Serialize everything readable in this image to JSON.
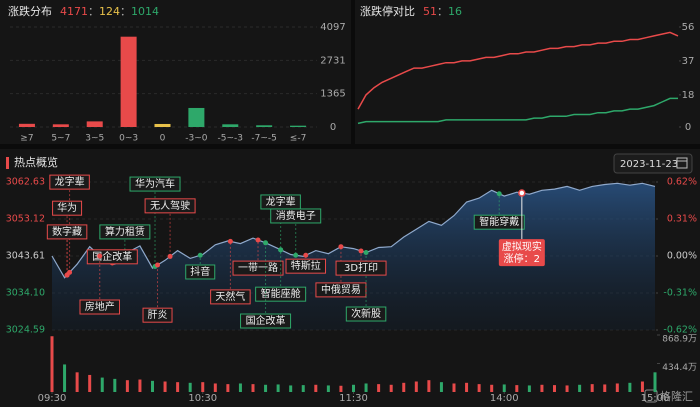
{
  "brand": "格隆汇",
  "chart_data": [
    {
      "type": "bar",
      "title": "涨跌分布",
      "summary": {
        "values": [
          4171,
          124,
          1014
        ],
        "colors": [
          "#e84a4a",
          "#e8c14a",
          "#2ea86a"
        ],
        "separator": "："
      },
      "categories": [
        "≥7",
        "5~7",
        "3~5",
        "0~3",
        "0",
        "-3~0",
        "-5~-3",
        "-7~-5",
        "≤-7"
      ],
      "values": [
        130,
        110,
        230,
        3700,
        124,
        780,
        110,
        70,
        54
      ],
      "colors": [
        "#e84a4a",
        "#e84a4a",
        "#e84a4a",
        "#e84a4a",
        "#e8c14a",
        "#2ea86a",
        "#2ea86a",
        "#2ea86a",
        "#2ea86a"
      ],
      "ylim": [
        0,
        4097
      ],
      "yticks": [
        0,
        1365,
        2731,
        4097
      ],
      "grid": true
    },
    {
      "type": "line",
      "title": "涨跌停对比",
      "summary": {
        "values": [
          51,
          16
        ],
        "colors": [
          "#e84a4a",
          "#2ea86a"
        ],
        "separator": "："
      },
      "x": [
        0,
        6,
        12,
        18,
        24,
        30,
        36,
        42,
        48,
        54,
        60,
        66,
        72,
        78,
        84,
        90,
        96,
        102,
        108,
        114,
        120,
        126,
        132,
        138,
        144,
        150,
        156,
        162,
        168,
        174,
        180,
        186,
        192,
        198,
        204,
        210,
        216,
        222,
        228,
        234,
        240
      ],
      "xlim": [
        0,
        240
      ],
      "series": [
        {
          "color": "#e84a4a",
          "values": [
            10,
            18,
            22,
            25,
            27,
            29,
            31,
            33,
            33,
            34,
            35,
            36,
            36,
            37,
            37,
            38,
            39,
            39,
            40,
            41,
            41,
            42,
            42,
            43,
            44,
            44,
            45,
            45,
            46,
            46,
            47,
            47,
            48,
            48,
            49,
            49,
            50,
            51,
            52,
            53,
            51
          ]
        },
        {
          "color": "#2ea86a",
          "values": [
            2,
            3,
            3,
            3,
            3,
            3,
            3,
            3,
            3,
            3,
            3,
            4,
            4,
            4,
            4,
            4,
            4,
            4,
            4,
            4,
            4,
            4,
            5,
            5,
            6,
            6,
            6,
            7,
            7,
            7,
            8,
            8,
            9,
            9,
            10,
            10,
            11,
            12,
            14,
            16,
            16
          ]
        }
      ],
      "ylim": [
        0,
        56
      ],
      "yticks": [
        0,
        18,
        37,
        56
      ],
      "grid": false
    },
    {
      "type": "area",
      "title": "热点概览",
      "date": "2023-11-23",
      "x": [
        0,
        5,
        10,
        15,
        20,
        25,
        30,
        35,
        40,
        45,
        50,
        55,
        60,
        65,
        70,
        75,
        80,
        85,
        90,
        95,
        100,
        105,
        110,
        115,
        120,
        125,
        130,
        135,
        140,
        145,
        150,
        155,
        160,
        165,
        170,
        175,
        180,
        185,
        190,
        195,
        200,
        205,
        210,
        215,
        220,
        225,
        230,
        235,
        240
      ],
      "xlim": [
        0,
        240
      ],
      "xticks": [
        {
          "value": 0,
          "label": "09:30"
        },
        {
          "value": 60,
          "label": "10:30"
        },
        {
          "value": 120,
          "label": "11:30"
        },
        {
          "value": 180,
          "label": "14:00"
        },
        {
          "value": 240,
          "label": "15:00"
        }
      ],
      "values": [
        3043.6,
        3038.0,
        3041.5,
        3046.0,
        3043.0,
        3041.5,
        3044.5,
        3046.2,
        3040.5,
        3042.5,
        3045.0,
        3043.0,
        3044.0,
        3046.5,
        3047.5,
        3046.8,
        3048.2,
        3047.0,
        3045.5,
        3044.0,
        3043.5,
        3045.0,
        3044.2,
        3046.0,
        3045.5,
        3044.5,
        3045.8,
        3046.0,
        3048.5,
        3050.5,
        3052.5,
        3051.5,
        3054.0,
        3057.5,
        3058.5,
        3060.5,
        3059.0,
        3060.0,
        3059.5,
        3060.5,
        3060.8,
        3061.5,
        3060.5,
        3061.5,
        3062.0,
        3062.3,
        3061.8,
        3062.3,
        3061.5
      ],
      "color": "#8fa9cc",
      "ylim": [
        3024.59,
        3062.63
      ],
      "yticks": [
        3024.59,
        {
          "value": 3034.1,
          "label": "3034.10"
        },
        3043.61,
        3053.12,
        3062.63
      ],
      "y2lim": [
        -0.62,
        0.62
      ],
      "y2ticks": [
        {
          "value": -0.62,
          "label": "-0.62%"
        },
        {
          "value": -0.31,
          "label": "-0.31%"
        },
        {
          "value": 0,
          "label": "0.00%"
        },
        {
          "value": 0.31,
          "label": "0.31%"
        },
        {
          "value": 0.62,
          "label": "0.62%"
        }
      ],
      "grid": true,
      "annotations": [
        {
          "label": "龙字辈",
          "x": 7,
          "y": 3062.6,
          "color": "#e84a4a"
        },
        {
          "label": "华为",
          "x": 6,
          "y": 3055.9,
          "color": "#e84a4a"
        },
        {
          "label": "华为汽车",
          "x": 41,
          "y": 3062.1,
          "color": "#2ea86a"
        },
        {
          "label": "无人驾驶",
          "x": 47,
          "y": 3056.5,
          "color": "#e84a4a"
        },
        {
          "label": "数字藏",
          "x": 6,
          "y": 3049.8,
          "color": "#e84a4a"
        },
        {
          "label": "算力租赁",
          "x": 29,
          "y": 3049.8,
          "color": "#2ea86a"
        },
        {
          "label": "国企改革",
          "x": 24,
          "y": 3043.4,
          "color": "#e84a4a"
        },
        {
          "label": "抖音",
          "x": 59,
          "y": 3039.5,
          "color": "#2ea86a"
        },
        {
          "label": "天然气",
          "x": 71,
          "y": 3033.1,
          "color": "#e84a4a"
        },
        {
          "label": "一带一路",
          "x": 82,
          "y": 3040.5,
          "color": "#e84a4a"
        },
        {
          "label": "智能座舱",
          "x": 91,
          "y": 3033.8,
          "color": "#2ea86a"
        },
        {
          "label": "国企改革",
          "x": 85,
          "y": 3026.9,
          "color": "#2ea86a"
        },
        {
          "label": "龙字辈",
          "x": 91,
          "y": 3057.5,
          "color": "#2ea86a"
        },
        {
          "label": "消费电子",
          "x": 97,
          "y": 3053.9,
          "color": "#2ea86a"
        },
        {
          "label": "特斯拉",
          "x": 101,
          "y": 3041.0,
          "color": "#e84a4a"
        },
        {
          "label": "中俄贸易",
          "x": 115,
          "y": 3034.9,
          "color": "#e84a4a"
        },
        {
          "label": "次新股",
          "x": 125,
          "y": 3028.7,
          "color": "#2ea86a"
        },
        {
          "label": "3D打印",
          "x": 123,
          "y": 3040.5,
          "color": "#e84a4a"
        },
        {
          "label": "肝炎",
          "x": 42,
          "y": 3028.4,
          "color": "#e84a4a"
        },
        {
          "label": "房地产",
          "x": 19,
          "y": 3030.5,
          "color": "#e84a4a"
        },
        {
          "label": "智能穿戴",
          "x": 178,
          "y": 3052.3,
          "color": "#2ea86a"
        }
      ],
      "tooltip": {
        "label": "虚拟现实",
        "detail": "涨停：2",
        "x": 187,
        "y": 3044.6,
        "color": "#e84a4a"
      }
    },
    {
      "type": "bar",
      "x": [
        0,
        5,
        10,
        15,
        20,
        25,
        30,
        35,
        40,
        45,
        50,
        55,
        60,
        65,
        70,
        75,
        80,
        85,
        90,
        95,
        100,
        105,
        110,
        115,
        120,
        125,
        130,
        135,
        140,
        145,
        150,
        155,
        160,
        165,
        170,
        175,
        180,
        185,
        190,
        195,
        200,
        205,
        210,
        215,
        220,
        225,
        230,
        235,
        240
      ],
      "values": [
        850,
        420,
        300,
        260,
        220,
        200,
        180,
        190,
        170,
        160,
        150,
        140,
        150,
        130,
        120,
        130,
        120,
        110,
        115,
        100,
        105,
        110,
        100,
        95,
        110,
        130,
        120,
        110,
        140,
        160,
        180,
        150,
        130,
        140,
        120,
        110,
        115,
        105,
        100,
        110,
        105,
        100,
        110,
        120,
        115,
        130,
        140,
        160,
        300
      ],
      "colors": [
        "#e84a4a",
        "#2ea86a"
      ],
      "ylim": [
        0,
        868.9
      ],
      "yticks": [
        {
          "value": 434.4,
          "label": "434.4万"
        },
        {
          "value": 868.9,
          "label": "868.9万"
        }
      ]
    }
  ]
}
